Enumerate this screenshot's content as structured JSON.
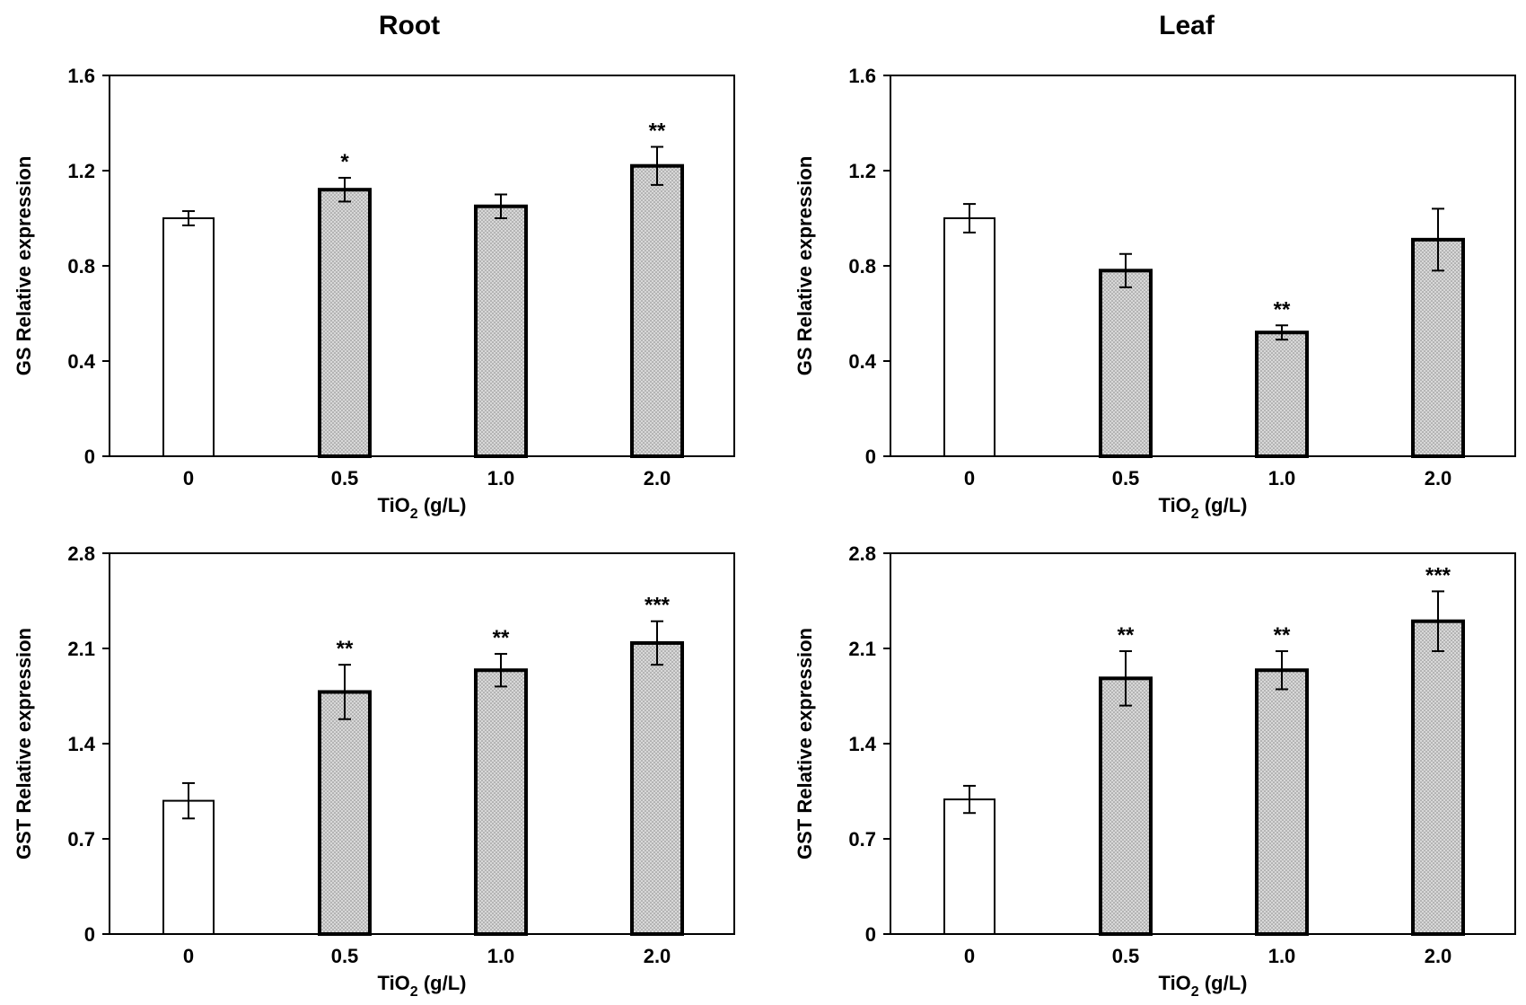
{
  "column_titles": [
    "Root",
    "Leaf"
  ],
  "colors": {
    "control_fill": "#ffffff",
    "treated_fill": "#c8c8c8",
    "stroke": "#000000"
  },
  "chart_data": [
    {
      "type": "bar",
      "title": "Root",
      "xlabel_main": "TiO",
      "xlabel_sub": "2",
      "xlabel_tail": " (g/L)",
      "ylabel": "GS Relative expression",
      "categories": [
        "0",
        "0.5",
        "1.0",
        "2.0"
      ],
      "values": [
        1.0,
        1.12,
        1.05,
        1.22
      ],
      "errors": [
        0.03,
        0.05,
        0.05,
        0.08
      ],
      "significance": [
        "",
        "*",
        "",
        "**"
      ],
      "ylim": [
        0,
        1.6
      ],
      "yticks": [
        0,
        0.4,
        0.8,
        1.2,
        1.6
      ],
      "ytick_labels": [
        "0",
        "0.4",
        "0.8",
        "1.2",
        "1.6"
      ]
    },
    {
      "type": "bar",
      "title": "Leaf",
      "xlabel_main": "TiO",
      "xlabel_sub": "2",
      "xlabel_tail": " (g/L)",
      "ylabel": "GS Relative expression",
      "categories": [
        "0",
        "0.5",
        "1.0",
        "2.0"
      ],
      "values": [
        1.0,
        0.78,
        0.52,
        0.91
      ],
      "errors": [
        0.06,
        0.07,
        0.03,
        0.13
      ],
      "significance": [
        "",
        "",
        "**",
        ""
      ],
      "ylim": [
        0,
        1.6
      ],
      "yticks": [
        0,
        0.4,
        0.8,
        1.2,
        1.6
      ],
      "ytick_labels": [
        "0",
        "0.4",
        "0.8",
        "1.2",
        "1.6"
      ]
    },
    {
      "type": "bar",
      "title": "Root",
      "xlabel_main": "TiO",
      "xlabel_sub": "2",
      "xlabel_tail": " (g/L)",
      "ylabel": "GST Relative expression",
      "categories": [
        "0",
        "0.5",
        "1.0",
        "2.0"
      ],
      "values": [
        0.98,
        1.78,
        1.94,
        2.14
      ],
      "errors": [
        0.13,
        0.2,
        0.12,
        0.16
      ],
      "significance": [
        "",
        "**",
        "**",
        "***"
      ],
      "ylim": [
        0,
        2.8
      ],
      "yticks": [
        0,
        0.7,
        1.4,
        2.1,
        2.8
      ],
      "ytick_labels": [
        "0",
        "0.7",
        "1.4",
        "2.1",
        "2.8"
      ]
    },
    {
      "type": "bar",
      "title": "Leaf",
      "xlabel_main": "TiO",
      "xlabel_sub": "2",
      "xlabel_tail": " (g/L)",
      "ylabel": "GST Relative expression",
      "categories": [
        "0",
        "0.5",
        "1.0",
        "2.0"
      ],
      "values": [
        0.99,
        1.88,
        1.94,
        2.3
      ],
      "errors": [
        0.1,
        0.2,
        0.14,
        0.22
      ],
      "significance": [
        "",
        "**",
        "**",
        "***"
      ],
      "ylim": [
        0,
        2.8
      ],
      "yticks": [
        0,
        0.7,
        1.4,
        2.1,
        2.8
      ],
      "ytick_labels": [
        "0",
        "0.7",
        "1.4",
        "2.1",
        "2.8"
      ]
    }
  ]
}
